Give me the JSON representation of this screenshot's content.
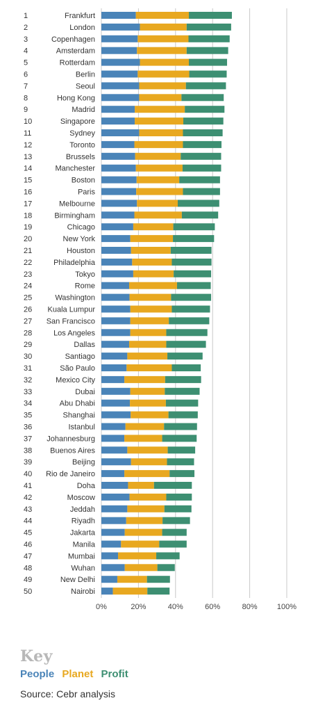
{
  "chart_data": {
    "type": "bar",
    "stacked": true,
    "orientation": "horizontal",
    "ranks": [
      "1",
      "2",
      "3",
      "4",
      "5",
      "6",
      "7",
      "8",
      "9",
      "10",
      "11",
      "12",
      "13",
      "14",
      "15",
      "16",
      "17",
      "18",
      "19",
      "20",
      "21",
      "22",
      "23",
      "24",
      "25",
      "26",
      "27",
      "28",
      "29",
      "30",
      "31",
      "32",
      "33",
      "34",
      "35",
      "36",
      "37",
      "38",
      "39",
      "40",
      "41",
      "42",
      "43",
      "44",
      "45",
      "46",
      "47",
      "48",
      "49",
      "50"
    ],
    "categories": [
      "Frankfurt",
      "London",
      "Copenhagen",
      "Amsterdam",
      "Rotterdam",
      "Berlin",
      "Seoul",
      "Hong Kong",
      "Madrid",
      "Singapore",
      "Sydney",
      "Toronto",
      "Brussels",
      "Manchester",
      "Boston",
      "Paris",
      "Melbourne",
      "Birmingham",
      "Chicago",
      "New York",
      "Houston",
      "Philadelphia",
      "Tokyo",
      "Rome",
      "Washington",
      "Kuala Lumpur",
      "San Francisco",
      "Los Angeles",
      "Dallas",
      "Santiago",
      "São Paulo",
      "Mexico City",
      "Dubai",
      "Abu Dhabi",
      "Shanghai",
      "Istanbul",
      "Johannesburg",
      "Buenos Aires",
      "Beijing",
      "Rio de Janeiro",
      "Doha",
      "Moscow",
      "Jeddah",
      "Riyadh",
      "Jakarta",
      "Manila",
      "Mumbai",
      "Wuhan",
      "New Delhi",
      "Nairobi"
    ],
    "series": [
      {
        "name": "People",
        "color": "#4a84b8",
        "values": [
          18.6,
          20.8,
          19.6,
          19.2,
          20.8,
          19.6,
          20.4,
          20.4,
          18.0,
          18.0,
          20.4,
          17.8,
          18.2,
          18.6,
          19.0,
          18.8,
          19.2,
          17.8,
          17.2,
          15.6,
          16.0,
          16.6,
          17.2,
          15.0,
          15.2,
          15.6,
          15.6,
          15.6,
          15.0,
          14.0,
          13.6,
          12.4,
          15.6,
          15.4,
          15.8,
          13.0,
          12.4,
          14.0,
          16.0,
          12.4,
          14.4,
          15.2,
          14.0,
          13.4,
          12.6,
          10.6,
          9.0,
          12.6,
          8.6,
          6.2
        ]
      },
      {
        "name": "Planet",
        "color": "#e8a820",
        "values": [
          28.6,
          25.2,
          27.4,
          26.8,
          26.4,
          27.8,
          25.2,
          22.8,
          27.0,
          26.2,
          23.6,
          26.2,
          24.6,
          25.2,
          23.0,
          25.2,
          22.0,
          25.6,
          21.6,
          23.0,
          21.4,
          21.4,
          21.8,
          25.8,
          22.4,
          22.4,
          20.8,
          19.4,
          20.0,
          21.6,
          24.4,
          22.0,
          18.6,
          19.4,
          20.4,
          20.8,
          20.4,
          21.8,
          19.4,
          24.4,
          14.0,
          19.8,
          20.0,
          19.6,
          20.2,
          20.6,
          20.6,
          17.6,
          16.0,
          18.6
        ]
      },
      {
        "name": "Profit",
        "color": "#3d8f72",
        "values": [
          23.2,
          24.0,
          22.2,
          22.4,
          20.6,
          20.2,
          21.6,
          22.8,
          21.4,
          21.6,
          21.4,
          20.8,
          21.8,
          20.8,
          22.0,
          20.0,
          22.4,
          19.6,
          22.4,
          22.2,
          22.0,
          21.4,
          20.2,
          18.2,
          21.6,
          20.6,
          21.8,
          22.2,
          21.4,
          19.0,
          15.6,
          19.4,
          18.8,
          17.4,
          15.8,
          17.8,
          18.6,
          14.8,
          14.6,
          13.4,
          20.4,
          13.8,
          14.6,
          14.8,
          13.2,
          14.8,
          12.6,
          9.4,
          12.4,
          12.0
        ]
      }
    ],
    "xlim": [
      0,
      100
    ],
    "xticks": [
      "0%",
      "20%",
      "40%",
      "60%",
      "80%",
      "100%"
    ],
    "grid": true
  },
  "legend": {
    "title": "Key",
    "items": [
      {
        "label": "People",
        "color": "#4a84b8"
      },
      {
        "label": "Planet",
        "color": "#e8a820"
      },
      {
        "label": "Profit",
        "color": "#3d8f72"
      }
    ]
  },
  "source": "Source: Cebr analysis"
}
